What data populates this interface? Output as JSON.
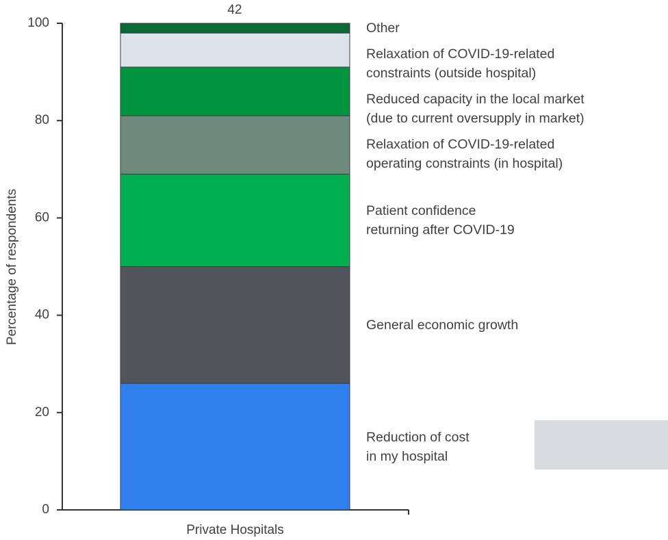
{
  "chart_data": {
    "type": "stacked_bar",
    "annotation": "42",
    "ylabel": "Percentage of respondents",
    "categories": [
      "Private Hospitals"
    ],
    "ylim": [
      0,
      100
    ],
    "yticks": [
      0,
      20,
      40,
      60,
      80,
      100
    ],
    "series": [
      {
        "name": "Reduction of cost\nin my hospital",
        "color": "#2f80ed",
        "values": [
          26
        ]
      },
      {
        "name": "General economic growth",
        "color": "#4f555a",
        "values": [
          24
        ]
      },
      {
        "name": "Patient confidence\nreturning after COVID-19",
        "color": "#00b050",
        "values": [
          19
        ]
      },
      {
        "name": "Relaxation of COVID-19-related\noperating constraints (in hospital)",
        "color": "#6e8a7c",
        "values": [
          12
        ]
      },
      {
        "name": "Reduced capacity in the local market\n(due to current oversupply in market)",
        "color": "#00943f",
        "values": [
          10
        ]
      },
      {
        "name": "Relaxation of COVID-19-related\nconstraints (outside hospital)",
        "color": "#dde3ea",
        "values": [
          7
        ]
      },
      {
        "name": "Other",
        "color": "#0b6b35",
        "values": [
          2
        ]
      }
    ]
  }
}
